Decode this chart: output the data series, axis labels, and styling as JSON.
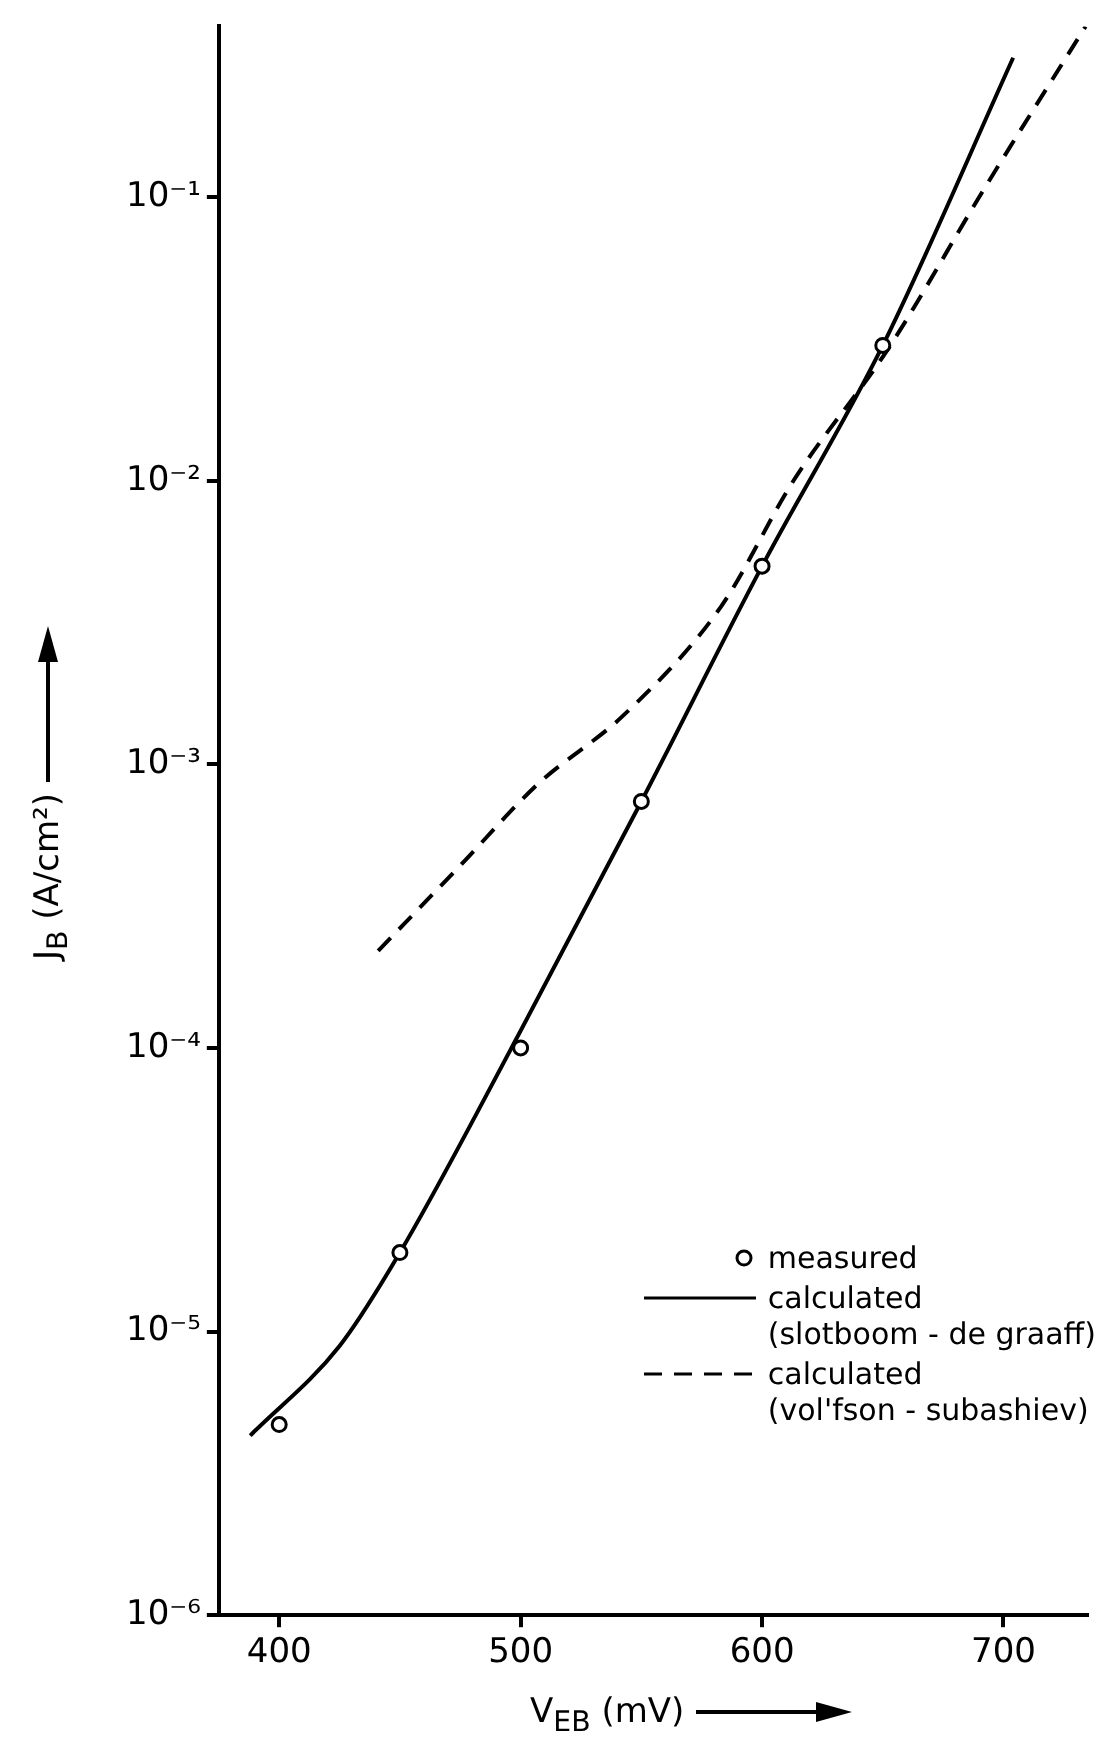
{
  "chart_data": {
    "type": "line",
    "xlabel": "V$_{EB}$ (mV)",
    "ylabel": "J$_{B}$ (A/cm²)",
    "log": "y",
    "grid": false,
    "legend": "bottom right",
    "xlim": [
      375,
      735
    ],
    "ylim": [
      1e-06,
      0.4
    ],
    "xticks": [
      400,
      500,
      600,
      700
    ],
    "yticks": [
      {
        "value": 1e-06,
        "label": "10⁻⁶"
      },
      {
        "value": 1e-05,
        "label": "10⁻⁵"
      },
      {
        "value": 0.0001,
        "label": "10⁻⁴"
      },
      {
        "value": 0.001,
        "label": "10⁻³"
      },
      {
        "value": 0.01,
        "label": "10⁻²"
      },
      {
        "value": 0.1,
        "label": "10⁻¹"
      }
    ],
    "series": [
      {
        "name": "measured",
        "type": "scatter",
        "marker": "circle",
        "color": "#000000",
        "x": [
          400,
          450,
          500,
          550,
          600,
          650
        ],
        "values": [
          4.7e-06,
          1.9e-05,
          0.0001,
          0.00074,
          0.005,
          0.03
        ]
      },
      {
        "name": "calculated\n(slotboom - de graaff)",
        "type": "line",
        "marker": "none",
        "line_style": "solid",
        "color": "#000000",
        "x": [
          388,
          425,
          450,
          500,
          550,
          600,
          650,
          704
        ],
        "values": [
          4.3e-06,
          8.9e-06,
          1.9e-05,
          0.000115,
          0.00074,
          0.005,
          0.03,
          0.31
        ]
      },
      {
        "name": "calculated\n(vol'fson - subashiev)",
        "type": "line",
        "marker": "none",
        "line_style": "dashed",
        "color": "#000000",
        "x": [
          441,
          475,
          507,
          543,
          583,
          613,
          652,
          692,
          734
        ],
        "values": [
          0.00022,
          0.00044,
          0.00085,
          0.0015,
          0.0036,
          0.01,
          0.029,
          0.107,
          0.4
        ]
      }
    ]
  }
}
